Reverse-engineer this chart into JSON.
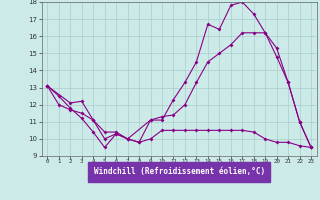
{
  "xlabel": "Windchill (Refroidissement éolien,°C)",
  "xlim": [
    -0.5,
    23.5
  ],
  "ylim": [
    9,
    18
  ],
  "yticks": [
    9,
    10,
    11,
    12,
    13,
    14,
    15,
    16,
    17,
    18
  ],
  "xticks": [
    0,
    1,
    2,
    3,
    4,
    5,
    6,
    7,
    8,
    9,
    10,
    11,
    12,
    13,
    14,
    15,
    16,
    17,
    18,
    19,
    20,
    21,
    22,
    23
  ],
  "bg_color": "#cceae8",
  "line_color": "#880088",
  "grid_color": "#aacccc",
  "xlabel_bg": "#7733aa",
  "xlabel_fg": "#ffffff",
  "line1_x": [
    0,
    1,
    2,
    3,
    4,
    5,
    6,
    7,
    8,
    9,
    10,
    11,
    12,
    13,
    14,
    15,
    16,
    17,
    18,
    19,
    20,
    21,
    22,
    23
  ],
  "line1_y": [
    13.1,
    12.5,
    11.8,
    11.2,
    10.4,
    9.5,
    10.3,
    10.0,
    9.8,
    11.1,
    11.1,
    12.3,
    13.3,
    14.5,
    16.7,
    16.4,
    17.8,
    18.0,
    17.3,
    16.2,
    14.8,
    13.3,
    11.0,
    9.5
  ],
  "line1_markers": [
    0,
    1,
    2,
    3,
    4,
    5,
    6,
    7,
    8,
    9,
    10,
    11,
    12,
    13,
    14,
    15,
    16,
    17,
    18,
    19,
    20,
    21,
    22,
    23
  ],
  "line2_x": [
    0,
    2,
    3,
    4,
    5,
    6,
    7,
    9,
    10,
    11,
    12,
    13,
    14,
    15,
    16,
    17,
    18,
    19,
    20,
    21,
    22,
    23
  ],
  "line2_y": [
    13.1,
    12.1,
    12.2,
    11.1,
    10.4,
    10.4,
    10.0,
    11.1,
    11.3,
    11.4,
    12.0,
    13.3,
    14.5,
    15.0,
    15.5,
    16.2,
    16.2,
    16.2,
    15.3,
    13.3,
    11.0,
    9.5
  ],
  "line3_x": [
    0,
    1,
    2,
    3,
    4,
    5,
    6,
    7,
    8,
    9,
    10,
    11,
    12,
    13,
    14,
    15,
    16,
    17,
    18,
    19,
    20,
    21,
    22,
    23
  ],
  "line3_y": [
    13.1,
    12.0,
    11.7,
    11.5,
    11.1,
    10.0,
    10.3,
    10.0,
    9.8,
    10.0,
    10.5,
    10.5,
    10.5,
    10.5,
    10.5,
    10.5,
    10.5,
    10.5,
    10.4,
    10.0,
    9.8,
    9.8,
    9.6,
    9.5
  ]
}
